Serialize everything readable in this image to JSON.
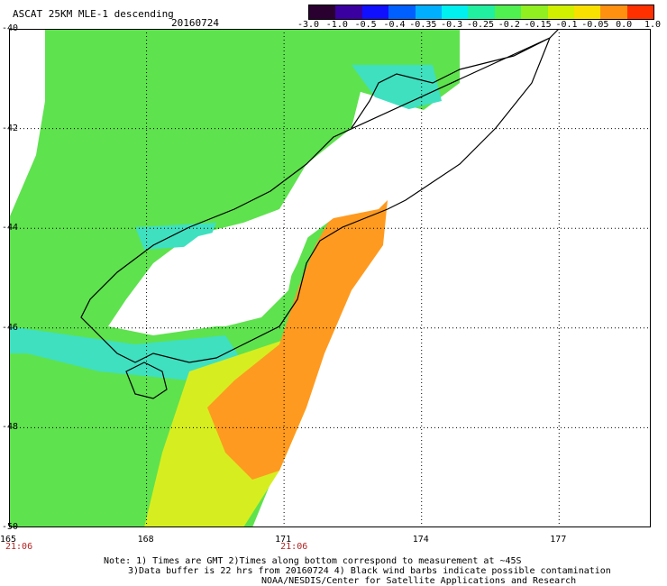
{
  "header": {
    "title": "ASCAT 25KM MLE-1 descending",
    "date": "20160724"
  },
  "colorbar": {
    "labels": [
      "-3.0",
      "-1.0",
      "-0.5",
      "-0.4",
      "-0.35",
      "-0.3",
      "-0.25",
      "-0.2",
      "-0.15",
      "-0.1",
      "-0.05",
      "0.0",
      "1.0"
    ],
    "colors": [
      "#2a0030",
      "#3a00a0",
      "#1010ff",
      "#0060ff",
      "#00b0ff",
      "#00f0f0",
      "#20f0a0",
      "#50f050",
      "#90f020",
      "#d0f000",
      "#f8e000",
      "#ff9010",
      "#ff3000"
    ]
  },
  "map_data": {
    "lon_range": [
      165,
      179
    ],
    "lat_range": [
      -50,
      -40
    ],
    "lon_ticks": [
      "165",
      "168",
      "171",
      "174",
      "177"
    ],
    "lat_ticks": [
      "-40",
      "-42",
      "-44",
      "-46",
      "-48",
      "-50"
    ],
    "time_labels": [
      {
        "text": "21:06",
        "lon": 165
      },
      {
        "text": "21:06",
        "lon": 171
      }
    ]
  },
  "notes": {
    "line1": "Note: 1) Times are GMT 2)Times along bottom correspond to measurement at ~45S",
    "line2": "3)Data buffer is 22 hrs from 20160724 4) Black wind barbs indicate possible contamination",
    "line3": "NOAA/NESDIS/Center for Satellite Applications and Research"
  }
}
